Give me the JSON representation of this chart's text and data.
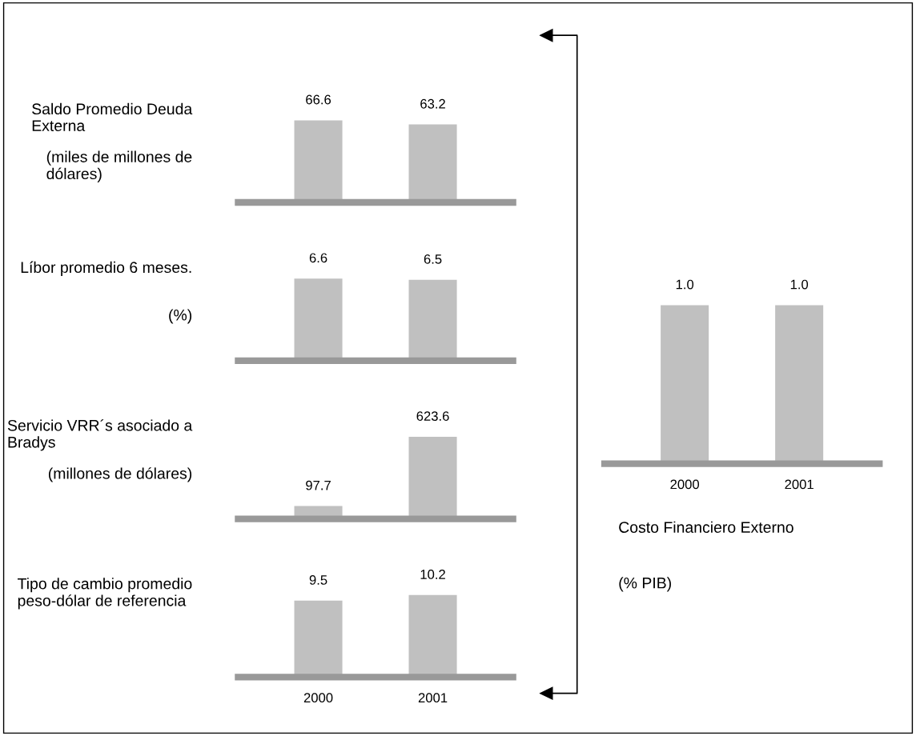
{
  "chart_data": [
    {
      "type": "bar",
      "title": "Saldo Promedio Deuda Externa",
      "subtitle": "(miles de millones de dólares)",
      "categories": [
        "2000",
        "2001"
      ],
      "values": [
        66.6,
        63.2
      ],
      "color": "#c0c0c0",
      "data_labels": true,
      "tick_labels": false
    },
    {
      "type": "bar",
      "title": "Líbor promedio 6 meses.",
      "subtitle": "(%)",
      "categories": [
        "2000",
        "2001"
      ],
      "values": [
        6.6,
        6.5
      ],
      "color": "#c0c0c0",
      "data_labels": true,
      "tick_labels": false
    },
    {
      "type": "bar",
      "title": "Servicio VRR´s asociado a Bradys",
      "subtitle": "(millones de dólares)",
      "categories": [
        "2000",
        "2001"
      ],
      "values": [
        97.7,
        623.6
      ],
      "color": "#c0c0c0",
      "data_labels": true,
      "tick_labels": false
    },
    {
      "type": "bar",
      "title": "Tipo de cambio promedio peso-dólar de referencia",
      "categories": [
        "2000",
        "2001"
      ],
      "values": [
        9.5,
        10.2
      ],
      "color": "#c0c0c0",
      "data_labels": true,
      "tick_labels": "x"
    },
    {
      "type": "bar",
      "title": "Costo Financiero Externo",
      "subtitle": "(% PIB)",
      "categories": [
        "2000",
        "2001"
      ],
      "values": [
        1.0,
        1.0
      ],
      "value_labels": [
        "1.0",
        "1.0"
      ],
      "color": "#c0c0c0",
      "tick_labels": "x"
    }
  ]
}
